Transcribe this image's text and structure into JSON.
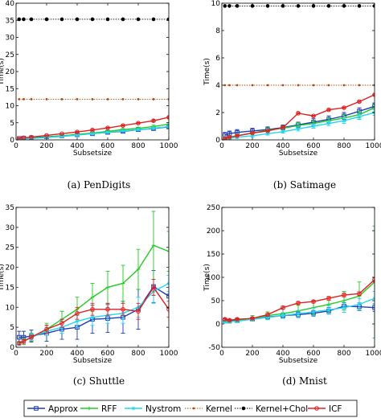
{
  "chart_data": [
    {
      "type": "line",
      "caption": "(a) PenDigits",
      "xlabel": "Subsetsize",
      "ylabel": "Time(s)",
      "xlim": [
        0,
        1000
      ],
      "ylim": [
        0,
        40
      ],
      "xticks": [
        0,
        200,
        400,
        600,
        800,
        1000
      ],
      "yticks": [
        0,
        5,
        10,
        15,
        20,
        25,
        30,
        35,
        40
      ],
      "series": [
        {
          "name": "Approx",
          "x": [
            20,
            50,
            100,
            200,
            300,
            400,
            500,
            600,
            700,
            800,
            900,
            1000
          ],
          "y": [
            0.4,
            0.5,
            0.6,
            0.9,
            1.2,
            1.5,
            1.8,
            2.2,
            2.5,
            3.0,
            3.3,
            3.8
          ],
          "err": [
            0.2,
            0.2,
            0.2,
            0.2,
            0.2,
            0.2,
            0.2,
            0.3,
            0.3,
            0.3,
            0.3,
            0.3
          ]
        },
        {
          "name": "RFF",
          "x": [
            20,
            50,
            100,
            200,
            300,
            400,
            500,
            600,
            700,
            800,
            900,
            1000
          ],
          "y": [
            0.2,
            0.3,
            0.5,
            0.8,
            1.2,
            1.6,
            2.0,
            2.5,
            3.0,
            3.4,
            3.9,
            4.6
          ],
          "err": [
            0.1,
            0.1,
            0.1,
            0.2,
            0.2,
            0.2,
            0.3,
            0.3,
            0.3,
            0.3,
            0.4,
            0.4
          ]
        },
        {
          "name": "Nystrom",
          "x": [
            20,
            50,
            100,
            200,
            300,
            400,
            500,
            600,
            700,
            800,
            900,
            1000
          ],
          "y": [
            0.2,
            0.3,
            0.4,
            0.7,
            1.0,
            1.4,
            1.8,
            2.2,
            2.6,
            3.0,
            3.4,
            3.9
          ],
          "err": [
            0.1,
            0.1,
            0.1,
            0.1,
            0.2,
            0.2,
            0.2,
            0.2,
            0.2,
            0.3,
            0.3,
            0.3
          ]
        },
        {
          "name": "Kernel",
          "x": [
            20,
            50,
            100,
            200,
            300,
            400,
            500,
            600,
            700,
            800,
            900,
            1000
          ],
          "y": [
            11.9,
            11.9,
            11.9,
            11.9,
            11.9,
            11.9,
            11.9,
            11.9,
            11.9,
            11.9,
            11.9,
            11.9
          ],
          "err": [
            0,
            0,
            0,
            0,
            0,
            0,
            0,
            0,
            0,
            0,
            0,
            0
          ]
        },
        {
          "name": "Kernel+Chol",
          "x": [
            20,
            50,
            100,
            200,
            300,
            400,
            500,
            600,
            700,
            800,
            900,
            1000
          ],
          "y": [
            35.3,
            35.3,
            35.3,
            35.3,
            35.3,
            35.3,
            35.3,
            35.3,
            35.3,
            35.3,
            35.3,
            35.3
          ],
          "err": [
            0,
            0,
            0,
            0,
            0,
            0,
            0,
            0,
            0,
            0,
            0,
            0
          ]
        },
        {
          "name": "ICF",
          "x": [
            20,
            50,
            100,
            200,
            300,
            400,
            500,
            600,
            700,
            800,
            900,
            1000
          ],
          "y": [
            0.5,
            0.6,
            0.8,
            1.3,
            1.8,
            2.3,
            2.9,
            3.5,
            4.2,
            4.9,
            5.6,
            6.6
          ],
          "err": [
            0.1,
            0.1,
            0.1,
            0.1,
            0.1,
            0.2,
            0.2,
            0.2,
            0.2,
            0.2,
            0.3,
            0.3
          ]
        }
      ]
    },
    {
      "type": "line",
      "caption": "(b) Satimage",
      "xlabel": "Subsetsize",
      "ylabel": "Time(s)",
      "xlim": [
        0,
        1000
      ],
      "ylim": [
        0,
        10
      ],
      "xticks": [
        0,
        200,
        400,
        600,
        800,
        1000
      ],
      "yticks": [
        0,
        2,
        4,
        6,
        8,
        10
      ],
      "series": [
        {
          "name": "Approx",
          "x": [
            20,
            50,
            100,
            200,
            300,
            400,
            500,
            600,
            700,
            800,
            900,
            1000
          ],
          "y": [
            0.35,
            0.45,
            0.55,
            0.65,
            0.75,
            0.9,
            1.1,
            1.3,
            1.5,
            1.75,
            2.1,
            2.45
          ],
          "err": [
            0.2,
            0.2,
            0.2,
            0.2,
            0.2,
            0.2,
            0.2,
            0.25,
            0.25,
            0.25,
            0.25,
            0.25
          ]
        },
        {
          "name": "RFF",
          "x": [
            20,
            50,
            100,
            200,
            300,
            400,
            500,
            600,
            700,
            800,
            900,
            1000
          ],
          "y": [
            0.1,
            0.2,
            0.3,
            0.5,
            0.7,
            0.85,
            1.05,
            1.2,
            1.4,
            1.6,
            1.85,
            2.35
          ],
          "err": [
            0.1,
            0.1,
            0.1,
            0.1,
            0.15,
            0.15,
            0.2,
            0.2,
            0.2,
            0.25,
            0.25,
            0.3
          ]
        },
        {
          "name": "Nystrom",
          "x": [
            20,
            50,
            100,
            200,
            300,
            400,
            500,
            600,
            700,
            800,
            900,
            1000
          ],
          "y": [
            0.05,
            0.1,
            0.2,
            0.3,
            0.45,
            0.6,
            0.8,
            1.0,
            1.2,
            1.4,
            1.7,
            2.0
          ],
          "err": [
            0.05,
            0.05,
            0.1,
            0.1,
            0.1,
            0.1,
            0.15,
            0.15,
            0.15,
            0.2,
            0.2,
            0.2
          ]
        },
        {
          "name": "Kernel",
          "x": [
            20,
            50,
            100,
            200,
            300,
            400,
            500,
            600,
            700,
            800,
            900,
            1000
          ],
          "y": [
            4.0,
            4.0,
            4.0,
            4.0,
            4.0,
            4.0,
            4.0,
            4.0,
            4.0,
            4.0,
            4.0,
            4.0
          ],
          "err": [
            0,
            0,
            0,
            0,
            0,
            0,
            0,
            0,
            0,
            0,
            0,
            0
          ]
        },
        {
          "name": "Kernel+Chol",
          "x": [
            20,
            50,
            100,
            200,
            300,
            400,
            500,
            600,
            700,
            800,
            900,
            1000
          ],
          "y": [
            9.8,
            9.8,
            9.8,
            9.8,
            9.8,
            9.8,
            9.8,
            9.8,
            9.8,
            9.8,
            9.8,
            9.8
          ],
          "err": [
            0,
            0,
            0,
            0,
            0,
            0,
            0,
            0,
            0,
            0,
            0,
            0
          ]
        },
        {
          "name": "ICF",
          "x": [
            20,
            50,
            100,
            200,
            300,
            400,
            500,
            600,
            700,
            800,
            900,
            1000
          ],
          "y": [
            0.1,
            0.2,
            0.3,
            0.5,
            0.65,
            0.9,
            1.95,
            1.75,
            2.2,
            2.35,
            2.8,
            3.3
          ],
          "err": [
            0.05,
            0.05,
            0.05,
            0.05,
            0.05,
            0.05,
            0.05,
            0.05,
            0.05,
            0.05,
            0.05,
            0.05
          ]
        }
      ]
    },
    {
      "type": "line",
      "caption": "(c) Shuttle",
      "xlabel": "Subsetsize",
      "ylabel": "Time(s)",
      "xlim": [
        0,
        1000
      ],
      "ylim": [
        0,
        35
      ],
      "xticks": [
        0,
        200,
        400,
        600,
        800,
        1000
      ],
      "yticks": [
        0,
        5,
        10,
        15,
        20,
        25,
        30,
        35
      ],
      "series": [
        {
          "name": "Approx",
          "x": [
            20,
            50,
            100,
            200,
            300,
            400,
            500,
            600,
            700,
            800,
            900,
            1000
          ],
          "y": [
            2.5,
            2.5,
            2.8,
            3.5,
            4.5,
            5.0,
            7.0,
            7.2,
            7.5,
            9.5,
            15.2,
            12.8
          ],
          "err": [
            1.5,
            1.5,
            1.5,
            2.0,
            2.5,
            3.0,
            3.5,
            3.5,
            4.0,
            5.0,
            4.0,
            3.0
          ]
        },
        {
          "name": "RFF",
          "x": [
            20,
            50,
            100,
            200,
            300,
            400,
            500,
            600,
            700,
            800,
            900,
            1000
          ],
          "y": [
            1.0,
            1.5,
            2.5,
            4.5,
            7.0,
            9.5,
            12.5,
            15.0,
            16.0,
            19.5,
            25.5,
            24.0
          ],
          "err": [
            0.5,
            0.8,
            1.0,
            1.5,
            2.0,
            3.0,
            3.5,
            4.0,
            4.5,
            5.0,
            8.5,
            5.0
          ]
        },
        {
          "name": "Nystrom",
          "x": [
            20,
            50,
            100,
            200,
            300,
            400,
            500,
            600,
            700,
            800,
            900,
            1000
          ],
          "y": [
            1.0,
            1.5,
            2.5,
            4.0,
            5.0,
            6.5,
            7.5,
            8.0,
            8.5,
            10.0,
            14.0,
            16.0
          ],
          "err": [
            0.5,
            0.5,
            0.8,
            1.0,
            1.5,
            1.5,
            2.0,
            2.0,
            2.5,
            2.5,
            3.0,
            2.0
          ]
        },
        {
          "name": "ICF",
          "x": [
            20,
            50,
            100,
            200,
            300,
            400,
            500,
            600,
            700,
            800,
            900,
            1000
          ],
          "y": [
            1.0,
            1.5,
            2.5,
            4.5,
            6.0,
            8.5,
            9.5,
            9.5,
            9.5,
            9.0,
            15.0,
            9.5
          ],
          "err": [
            0.3,
            0.5,
            0.5,
            1.0,
            1.0,
            1.5,
            1.5,
            1.5,
            1.5,
            2.0,
            2.0,
            2.0
          ]
        }
      ]
    },
    {
      "type": "line",
      "caption": "(d) Mnist",
      "xlabel": "Subsetsize",
      "ylabel": "Time(s)",
      "xlim": [
        0,
        1000
      ],
      "ylim": [
        -50,
        250
      ],
      "xticks": [
        0,
        200,
        400,
        600,
        800,
        1000
      ],
      "yticks": [
        -50,
        0,
        50,
        100,
        150,
        200,
        250
      ],
      "series": [
        {
          "name": "Approx",
          "x": [
            20,
            50,
            100,
            200,
            300,
            400,
            500,
            600,
            700,
            800,
            900,
            1000
          ],
          "y": [
            8,
            6,
            8,
            10,
            15,
            18,
            20,
            23,
            28,
            38,
            37,
            35
          ],
          "err": [
            3,
            3,
            3,
            4,
            5,
            5,
            6,
            6,
            7,
            8,
            8,
            8
          ]
        },
        {
          "name": "RFF",
          "x": [
            20,
            50,
            100,
            200,
            300,
            400,
            500,
            600,
            700,
            800,
            900,
            1000
          ],
          "y": [
            5,
            5,
            7,
            12,
            18,
            22,
            28,
            35,
            42,
            50,
            60,
            90
          ],
          "err": [
            2,
            3,
            4,
            6,
            8,
            10,
            12,
            14,
            16,
            20,
            30,
            120
          ]
        },
        {
          "name": "Nystrom",
          "x": [
            20,
            50,
            100,
            200,
            300,
            400,
            500,
            600,
            700,
            800,
            900,
            1000
          ],
          "y": [
            4,
            5,
            6,
            10,
            14,
            18,
            22,
            26,
            30,
            35,
            42,
            55
          ],
          "err": [
            2,
            2,
            3,
            4,
            5,
            6,
            7,
            8,
            9,
            10,
            12,
            15
          ]
        },
        {
          "name": "ICF",
          "x": [
            20,
            50,
            100,
            200,
            300,
            400,
            500,
            600,
            700,
            800,
            900,
            1000
          ],
          "y": [
            10,
            8,
            10,
            12,
            20,
            35,
            45,
            48,
            55,
            62,
            65,
            95
          ],
          "err": [
            2,
            2,
            2,
            2,
            3,
            3,
            3,
            3,
            4,
            4,
            4,
            5
          ]
        }
      ]
    }
  ],
  "legend": {
    "entries": [
      "Approx",
      "RFF",
      "Nystrom",
      "Kernel",
      "Kernel+Chol",
      "ICF"
    ],
    "placement": "bottom"
  },
  "colors": {
    "Approx": "#1c3fb8",
    "RFF": "#22cc22",
    "Nystrom": "#22d8ee",
    "Kernel": "#b24a10",
    "Kernel+Chol": "#000000",
    "ICF": "#e02020"
  }
}
